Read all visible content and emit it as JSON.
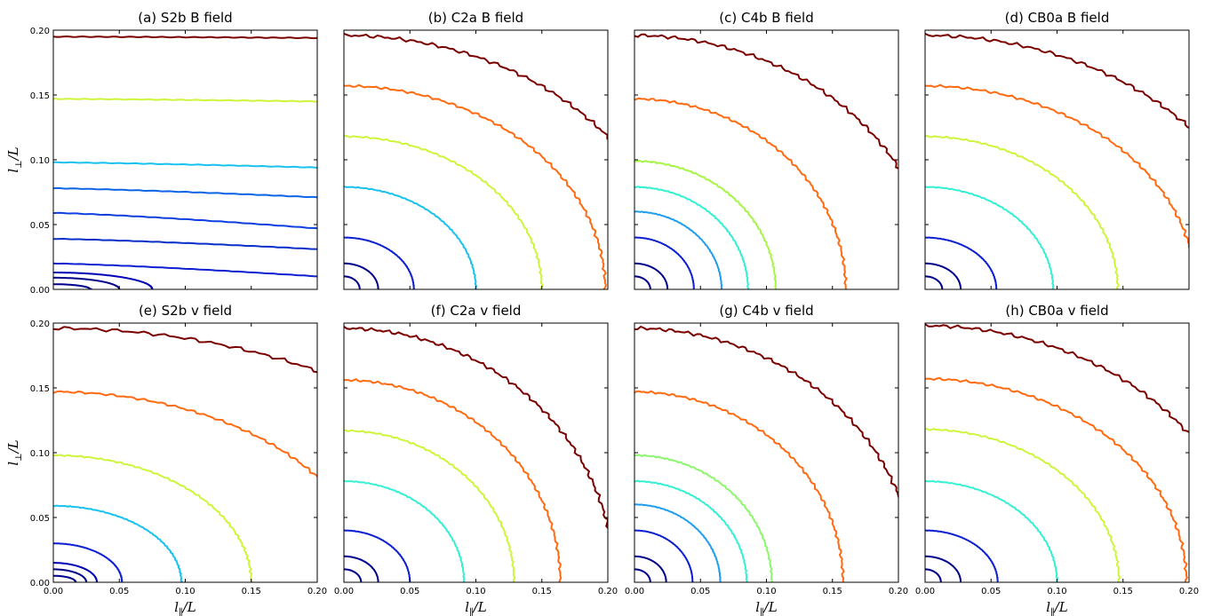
{
  "chart_data": {
    "type": "line",
    "xlabel": {
      "base": "l",
      "sub": "∥",
      "tail": "/L"
    },
    "ylabel": {
      "base": "l",
      "sub": "⊥",
      "tail": "/L"
    },
    "xlim": [
      0,
      0.2
    ],
    "ylim": [
      0,
      0.2
    ],
    "ticks": [
      "0.00",
      "0.05",
      "0.10",
      "0.15",
      "0.20"
    ],
    "grid": false,
    "colors": {
      "c1": "#00008b",
      "c2": "#0c1fd2",
      "c3": "#0d64e6",
      "c4": "#18c2f0",
      "c5": "#33f0d2",
      "c6": "#8af76c",
      "c7": "#cdf53a",
      "c8": "#ff6a10",
      "c9": "#7a0000"
    },
    "panels": [
      {
        "title": "(a) S2b B field",
        "contours": [
          {
            "color": "#00008b",
            "mode": "ellipse",
            "a": 0.028,
            "b": 0.004
          },
          {
            "color": "#00008b",
            "mode": "ellipse",
            "a": 0.05,
            "b": 0.009
          },
          {
            "color": "#0000b4",
            "mode": "ellipse",
            "a": 0.075,
            "b": 0.013
          },
          {
            "color": "#0c1fd2",
            "mode": "hline",
            "y0": 0.02,
            "y1": 0.01
          },
          {
            "color": "#0a2ec8",
            "mode": "hline",
            "y0": 0.039,
            "y1": 0.031
          },
          {
            "color": "#0d3ee0",
            "mode": "hline",
            "y0": 0.059,
            "y1": 0.047
          },
          {
            "color": "#0d64e6",
            "mode": "hline",
            "y0": 0.078,
            "y1": 0.071
          },
          {
            "color": "#18c2f0",
            "mode": "hline",
            "y0": 0.098,
            "y1": 0.094
          },
          {
            "color": "#cdf53a",
            "mode": "hline",
            "y0": 0.147,
            "y1": 0.145
          },
          {
            "color": "#7a0000",
            "mode": "hline",
            "y0": 0.195,
            "y1": 0.194
          }
        ]
      },
      {
        "title": "(b) C2a B field",
        "contours": [
          {
            "color": "#00008b",
            "mode": "ellipse",
            "a": 0.012,
            "b": 0.01
          },
          {
            "color": "#00008b",
            "mode": "ellipse",
            "a": 0.026,
            "b": 0.02
          },
          {
            "color": "#0c1fd2",
            "mode": "ellipse",
            "a": 0.053,
            "b": 0.04
          },
          {
            "color": "#18c2f0",
            "mode": "ellipse",
            "a": 0.1,
            "b": 0.079
          },
          {
            "color": "#cdf53a",
            "mode": "ellipse",
            "a": 0.15,
            "b": 0.118
          },
          {
            "color": "#ff6a10",
            "mode": "ellipse",
            "a": 0.198,
            "b": 0.157
          },
          {
            "color": "#7a0000",
            "mode": "ellipse",
            "a": 0.25,
            "b": 0.196
          }
        ]
      },
      {
        "title": "(c) C4b B field",
        "contours": [
          {
            "color": "#00008b",
            "mode": "ellipse",
            "a": 0.012,
            "b": 0.01
          },
          {
            "color": "#00008b",
            "mode": "ellipse",
            "a": 0.025,
            "b": 0.02
          },
          {
            "color": "#0c1fd2",
            "mode": "ellipse",
            "a": 0.045,
            "b": 0.04
          },
          {
            "color": "#1f9ef0",
            "mode": "ellipse",
            "a": 0.066,
            "b": 0.06
          },
          {
            "color": "#33f0d2",
            "mode": "ellipse",
            "a": 0.086,
            "b": 0.079
          },
          {
            "color": "#a6f545",
            "mode": "ellipse",
            "a": 0.107,
            "b": 0.099
          },
          {
            "color": "#ff6a10",
            "mode": "ellipse",
            "a": 0.16,
            "b": 0.147
          },
          {
            "color": "#7a0000",
            "mode": "ellipse",
            "a": 0.228,
            "b": 0.196
          }
        ]
      },
      {
        "title": "(d) CB0a B field",
        "contours": [
          {
            "color": "#00008b",
            "mode": "ellipse",
            "a": 0.013,
            "b": 0.01
          },
          {
            "color": "#00008b",
            "mode": "ellipse",
            "a": 0.027,
            "b": 0.02
          },
          {
            "color": "#0c1fd2",
            "mode": "ellipse",
            "a": 0.054,
            "b": 0.04
          },
          {
            "color": "#33f0d2",
            "mode": "ellipse",
            "a": 0.097,
            "b": 0.079
          },
          {
            "color": "#cdf53a",
            "mode": "ellipse",
            "a": 0.146,
            "b": 0.118
          },
          {
            "color": "#ff6a10",
            "mode": "ellipse",
            "a": 0.205,
            "b": 0.157
          },
          {
            "color": "#7a0000",
            "mode": "ellipse",
            "a": 0.26,
            "b": 0.196
          }
        ]
      },
      {
        "title": "(e) S2b v field",
        "contours": [
          {
            "color": "#00008b",
            "mode": "ellipse",
            "a": 0.017,
            "b": 0.005
          },
          {
            "color": "#00008b",
            "mode": "ellipse",
            "a": 0.025,
            "b": 0.01
          },
          {
            "color": "#0000b4",
            "mode": "ellipse",
            "a": 0.033,
            "b": 0.015
          },
          {
            "color": "#0c1fd2",
            "mode": "ellipse",
            "a": 0.052,
            "b": 0.03
          },
          {
            "color": "#18c2f0",
            "mode": "ellipse",
            "a": 0.097,
            "b": 0.059
          },
          {
            "color": "#cdf53a",
            "mode": "ellipse",
            "a": 0.15,
            "b": 0.098
          },
          {
            "color": "#ff6a10",
            "mode": "ellipse",
            "a": 0.24,
            "b": 0.147
          },
          {
            "color": "#7a0000",
            "mode": "ellipse",
            "a": 0.36,
            "b": 0.196
          }
        ]
      },
      {
        "title": "(f) C2a v field",
        "contours": [
          {
            "color": "#00008b",
            "mode": "ellipse",
            "a": 0.013,
            "b": 0.01
          },
          {
            "color": "#00008b",
            "mode": "ellipse",
            "a": 0.026,
            "b": 0.02
          },
          {
            "color": "#0c1fd2",
            "mode": "ellipse",
            "a": 0.05,
            "b": 0.04
          },
          {
            "color": "#33f0d2",
            "mode": "ellipse",
            "a": 0.091,
            "b": 0.078
          },
          {
            "color": "#cdf53a",
            "mode": "ellipse",
            "a": 0.129,
            "b": 0.117
          },
          {
            "color": "#ff6a10",
            "mode": "ellipse",
            "a": 0.164,
            "b": 0.156
          },
          {
            "color": "#7a0000",
            "mode": "ellipse",
            "a": 0.205,
            "b": 0.196
          }
        ]
      },
      {
        "title": "(g) C4b v field",
        "contours": [
          {
            "color": "#00008b",
            "mode": "ellipse",
            "a": 0.012,
            "b": 0.01
          },
          {
            "color": "#00008b",
            "mode": "ellipse",
            "a": 0.024,
            "b": 0.02
          },
          {
            "color": "#0c1fd2",
            "mode": "ellipse",
            "a": 0.044,
            "b": 0.04
          },
          {
            "color": "#1f9ef0",
            "mode": "ellipse",
            "a": 0.065,
            "b": 0.06
          },
          {
            "color": "#33f0d2",
            "mode": "ellipse",
            "a": 0.085,
            "b": 0.078
          },
          {
            "color": "#8af76c",
            "mode": "ellipse",
            "a": 0.104,
            "b": 0.098
          },
          {
            "color": "#ff6a10",
            "mode": "ellipse",
            "a": 0.158,
            "b": 0.147
          },
          {
            "color": "#7a0000",
            "mode": "ellipse",
            "a": 0.213,
            "b": 0.196
          }
        ]
      },
      {
        "title": "(h) CB0a v field",
        "contours": [
          {
            "color": "#00008b",
            "mode": "ellipse",
            "a": 0.012,
            "b": 0.01
          },
          {
            "color": "#00008b",
            "mode": "ellipse",
            "a": 0.027,
            "b": 0.02
          },
          {
            "color": "#0c1fd2",
            "mode": "ellipse",
            "a": 0.055,
            "b": 0.04
          },
          {
            "color": "#33f0d2",
            "mode": "ellipse",
            "a": 0.1,
            "b": 0.078
          },
          {
            "color": "#cdf53a",
            "mode": "ellipse",
            "a": 0.147,
            "b": 0.118
          },
          {
            "color": "#ff6a10",
            "mode": "ellipse",
            "a": 0.198,
            "b": 0.157
          },
          {
            "color": "#7a0000",
            "mode": "ellipse",
            "a": 0.245,
            "b": 0.198
          }
        ]
      }
    ]
  }
}
